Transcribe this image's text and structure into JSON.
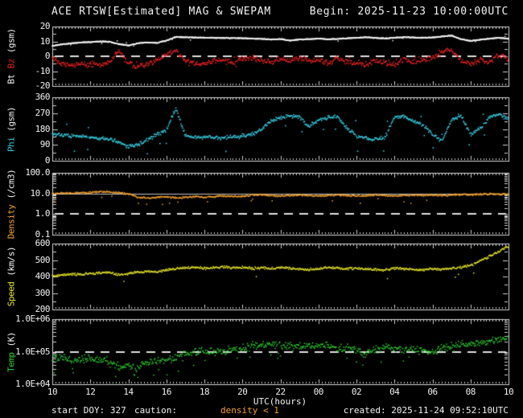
{
  "header": {
    "title": "ACE RTSW[Estimated] MAG & SWEPAM",
    "begin": "Begin: 2025-11-23 10:00:00UTC"
  },
  "footer": {
    "start_doy": "start DOY: 327",
    "caution_label": "caution:",
    "caution_value": "density < 1",
    "created": "created: 2025-11-24 09:52:10UTC"
  },
  "colors": {
    "foreground": "#f2f2f2",
    "bt": "#f2f2f2",
    "bz": "#e02020",
    "phi": "#35c8dc",
    "density": "#f5a22d",
    "speed": "#e6e622",
    "temp": "#2ecc2e",
    "caution": "#f5a22d",
    "ref_line": "#e0e0e0",
    "border": "#d8d8d8"
  },
  "x_axis": {
    "label": "UTC(hours)",
    "tick_labels": [
      "10",
      "12",
      "14",
      "16",
      "18",
      "20",
      "22",
      "00",
      "02",
      "04",
      "06",
      "08",
      "10"
    ],
    "start_hour": 10,
    "end_hour": 34,
    "major_tick_hours": 2,
    "minor_tick_minutes": 10
  },
  "chart_data": {
    "type": "scatter",
    "title": "ACE RTSW[Estimated] MAG & SWEPAM",
    "begin": "2025-11-23 10:00:00UTC",
    "keypoint_hours_start": 10,
    "keypoint_hours_step": 0.5,
    "panels": [
      {
        "name": "mag",
        "scale": "linear",
        "ylim": [
          -20,
          20
        ],
        "yticks": [
          {
            "v": 20,
            "label": "20"
          },
          {
            "v": 10,
            "label": "10"
          },
          {
            "v": 0,
            "label": "0"
          },
          {
            "v": -10,
            "label": "-10"
          },
          {
            "v": -20,
            "label": "-20"
          }
        ],
        "yminor": [
          15,
          5,
          -5,
          -15
        ],
        "dashed_at": [
          0
        ],
        "solid_at": [],
        "ylabel_parts": [
          {
            "text": "Bt",
            "color": "#f2f2f2"
          },
          {
            "text": "Bz",
            "color": "#e02020"
          },
          {
            "text": "(gsm)",
            "color": "#f2f2f2"
          }
        ],
        "series": [
          {
            "name": "Bz",
            "color": "#e02020",
            "log": false,
            "jitter": 2.1,
            "step_min": 2,
            "size": 1.6,
            "seed": 22,
            "outlier": {
              "p": 0.05,
              "amp": 2.5,
              "dir": 0
            },
            "keypoints": [
              -0.5,
              -4.5,
              -6,
              -5.5,
              -5,
              -6,
              -4,
              3.5,
              -5,
              -7,
              -5,
              -3,
              1,
              4,
              -3.5,
              -4.5,
              -5,
              -3.5,
              -2.5,
              -4,
              -2,
              -1,
              -2.5,
              -4,
              -1.5,
              -3.5,
              -1,
              -3,
              -2.5,
              -4.5,
              -1.5,
              -3.5,
              -5,
              -6,
              -3,
              -4.5,
              -5.5,
              -2,
              -4.5,
              -2.5,
              -1,
              3,
              4.5,
              -3,
              -5.5,
              -2,
              -4.5,
              1.5,
              -2
            ]
          },
          {
            "name": "Bt",
            "color": "#f2f2f2",
            "log": false,
            "jitter": 0.35,
            "step_min": 1,
            "size": 1.5,
            "seed": 11,
            "outlier": {
              "p": 0.008,
              "amp": 2,
              "dir": 0
            },
            "keypoints": [
              7,
              8,
              8.7,
              9.3,
              9.6,
              10,
              9.8,
              8.2,
              7.2,
              8.8,
              9.2,
              9,
              10.5,
              13,
              12.8,
              12.6,
              12.5,
              12.4,
              12.3,
              12.2,
              12.1,
              11.9,
              11.7,
              11.3,
              11.6,
              10.6,
              11.2,
              11.5,
              11.9,
              11.4,
              11.7,
              12.1,
              12.4,
              12.8,
              12.3,
              12,
              12.4,
              12.9,
              12.6,
              12.4,
              12.7,
              13.3,
              13.9,
              11.5,
              10.3,
              11.2,
              11.8,
              12.4,
              11.8
            ]
          }
        ]
      },
      {
        "name": "phi",
        "scale": "linear",
        "ylim": [
          0,
          360
        ],
        "yticks": [
          {
            "v": 360,
            "label": "360"
          },
          {
            "v": 270,
            "label": "270"
          },
          {
            "v": 180,
            "label": "180"
          },
          {
            "v": 90,
            "label": "90"
          },
          {
            "v": 0,
            "label": "0"
          }
        ],
        "yminor": [
          315,
          225,
          135,
          45
        ],
        "dashed_at": [],
        "solid_at": [],
        "ylabel_parts": [
          {
            "text": "Phi",
            "color": "#35c8dc"
          },
          {
            "text": "(gsm)",
            "color": "#f2f2f2"
          }
        ],
        "series": [
          {
            "name": "Phi",
            "color": "#35c8dc",
            "log": false,
            "jitter": 13,
            "step_min": 2,
            "size": 1.6,
            "seed": 33,
            "outlier": {
              "p": 0.035,
              "amp": 85,
              "dir": 0
            },
            "keypoints": [
              152,
              145,
              138,
              142,
              133,
              128,
              120,
              108,
              78,
              90,
              118,
              148,
              172,
              300,
              140,
              134,
              132,
              135,
              130,
              136,
              140,
              150,
              175,
              225,
              242,
              255,
              248,
              195,
              232,
              245,
              252,
              185,
              142,
              128,
              122,
              130,
              248,
              252,
              228,
              205,
              150,
              110,
              228,
              258,
              150,
              185,
              245,
              262,
              235
            ]
          }
        ]
      },
      {
        "name": "density",
        "scale": "log",
        "ylim": [
          0.1,
          100
        ],
        "yticks": [
          {
            "v": 100,
            "label": "100.0"
          },
          {
            "v": 10,
            "label": "10.0"
          },
          {
            "v": 1,
            "label": "1.0"
          },
          {
            "v": 0.1,
            "label": "0.1"
          }
        ],
        "yminor": [],
        "dashed_at": [
          1
        ],
        "solid_at": [
          10
        ],
        "ylabel_parts": [
          {
            "text": "Density",
            "color": "#f5a22d"
          },
          {
            "text": "(/cm3)",
            "color": "#f2f2f2"
          }
        ],
        "series": [
          {
            "name": "Density",
            "color": "#f5a22d",
            "log": true,
            "jitter": 0.05,
            "step_min": 2,
            "size": 1.5,
            "seed": 44,
            "outlier": {
              "p": 0.02,
              "amp": 0.4,
              "dir": -1
            },
            "keypoints": [
              10,
              10.2,
              10.4,
              10.6,
              11,
              12.5,
              11.5,
              10.5,
              9.5,
              6.5,
              6,
              6.5,
              7,
              6,
              6.5,
              7,
              6.5,
              7,
              7.5,
              7,
              7.5,
              8,
              8.5,
              8,
              7.5,
              8,
              8.5,
              8,
              7.5,
              8,
              8.5,
              8,
              7.5,
              8,
              8.5,
              8,
              7.5,
              8,
              8.5,
              8,
              8.5,
              8,
              8.5,
              9,
              8.5,
              9,
              9.5,
              9,
              9.5
            ]
          }
        ]
      },
      {
        "name": "speed",
        "scale": "linear",
        "ylim": [
          200,
          600
        ],
        "yticks": [
          {
            "v": 600,
            "label": "600"
          },
          {
            "v": 500,
            "label": "500"
          },
          {
            "v": 400,
            "label": "400"
          },
          {
            "v": 300,
            "label": "300"
          },
          {
            "v": 200,
            "label": "200"
          }
        ],
        "yminor": [
          550,
          450,
          350,
          250
        ],
        "dashed_at": [],
        "solid_at": [],
        "ylabel_parts": [
          {
            "text": "Speed",
            "color": "#e6e622"
          },
          {
            "text": "(km/s)",
            "color": "#f2f2f2"
          }
        ],
        "series": [
          {
            "name": "Speed",
            "color": "#e6e622",
            "log": false,
            "jitter": 9,
            "step_min": 2,
            "size": 1.5,
            "seed": 55,
            "outlier": {
              "p": 0.012,
              "amp": 70,
              "dir": -1
            },
            "keypoints": [
              405,
              410,
              415,
              412,
              418,
              422,
              425,
              408,
              418,
              425,
              432,
              428,
              438,
              448,
              452,
              455,
              450,
              455,
              458,
              452,
              455,
              450,
              452,
              448,
              455,
              450,
              445,
              442,
              448,
              455,
              452,
              446,
              450,
              444,
              442,
              440,
              450,
              446,
              442,
              438,
              448,
              444,
              450,
              455,
              468,
              495,
              520,
              550,
              585
            ]
          }
        ]
      },
      {
        "name": "temp",
        "scale": "log",
        "ylim": [
          10000,
          1000000
        ],
        "yticks": [
          {
            "v": 1000000,
            "label": "1.0E+06"
          },
          {
            "v": 100000,
            "label": "1.0E+05"
          },
          {
            "v": 10000,
            "label": "1.0E+04"
          }
        ],
        "yminor": [],
        "dashed_at": [
          100000
        ],
        "solid_at": [],
        "ylabel_parts": [
          {
            "text": "Temp",
            "color": "#2ecc2e"
          },
          {
            "text": "(K)",
            "color": "#f2f2f2"
          }
        ],
        "series": [
          {
            "name": "Temp",
            "color": "#2ecc2e",
            "log": true,
            "jitter": 0.14,
            "step_min": 2,
            "size": 1.5,
            "seed": 66,
            "outlier": {
              "p": 0.04,
              "amp": 0.4,
              "dir": -1
            },
            "keypoints": [
              70000,
              65000,
              60000,
              55000,
              65000,
              55000,
              50000,
              35000,
              40000,
              32000,
              45000,
              50000,
              55000,
              65000,
              85000,
              100000,
              110000,
              100000,
              105000,
              110000,
              130000,
              150000,
              155000,
              160000,
              160000,
              150000,
              140000,
              150000,
              155000,
              145000,
              130000,
              135000,
              105000,
              85000,
              120000,
              130000,
              125000,
              120000,
              115000,
              110000,
              105000,
              130000,
              150000,
              170000,
              180000,
              190000,
              200000,
              230000,
              290000
            ]
          }
        ]
      }
    ]
  }
}
